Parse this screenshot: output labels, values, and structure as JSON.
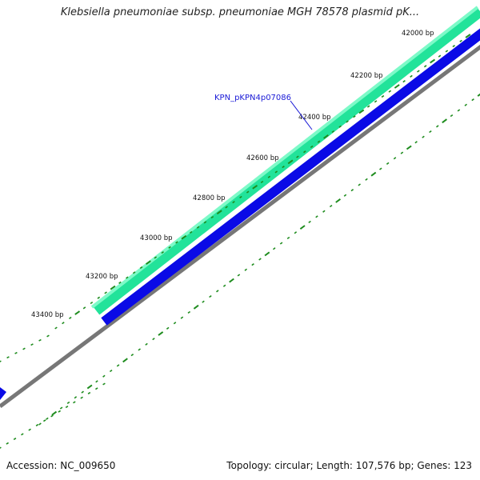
{
  "title": "Klebsiella pneumoniae subsp. pneumoniae MGH 78578 plasmid pK...",
  "footer": {
    "accession": "Accession: NC_009650",
    "summary": "Topology: circular; Length: 107,576 bp; Genes: 123"
  },
  "map": {
    "ticks": [
      {
        "label": "42000 bp"
      },
      {
        "label": "42200 bp"
      },
      {
        "label": "42400 bp"
      },
      {
        "label": "42600 bp"
      },
      {
        "label": "42800 bp"
      },
      {
        "label": "43000 bp"
      },
      {
        "label": "43200 bp"
      },
      {
        "label": "43400 bp"
      }
    ],
    "gene_label": "KPN_pKPN4p07086",
    "colors": {
      "forward_feature": "#22e39a",
      "forward_feature_highlight": "#7dfac8",
      "reverse_feature": "#0a0ae6",
      "backbone": "#777777",
      "ticks": "#1e8c1e"
    }
  }
}
